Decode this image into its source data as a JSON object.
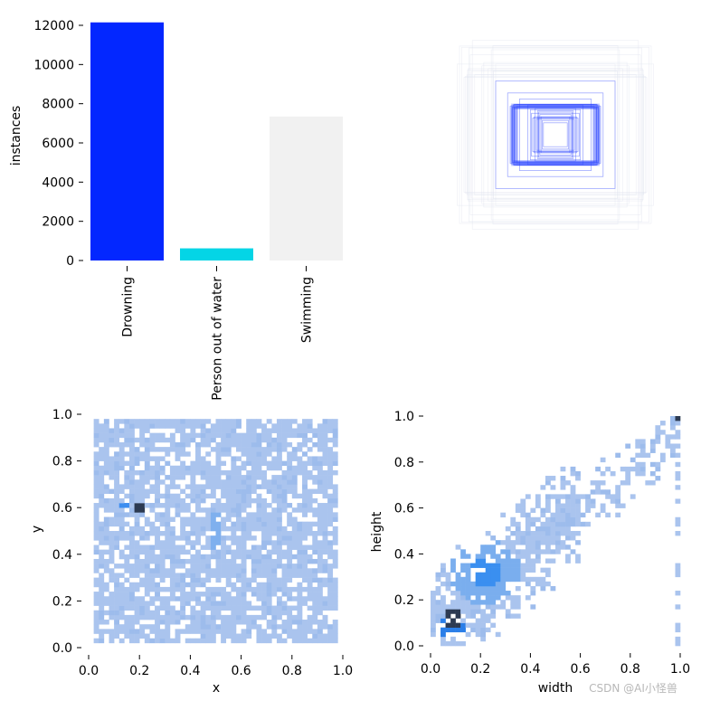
{
  "chart_data": [
    {
      "type": "bar",
      "categories": [
        "Drowning",
        "Person out of water",
        "Swimming"
      ],
      "values": [
        12150,
        620,
        7350
      ],
      "colors": [
        "#0327ff",
        "#04d5e6",
        "#f1f1f1"
      ],
      "xlabel": "",
      "ylabel": "instances",
      "ylim": [
        0,
        12000
      ],
      "yticks": [
        "0",
        "2000",
        "4000",
        "6000",
        "8000",
        "10000",
        "12000"
      ],
      "grid": false
    },
    {
      "type": "boxes",
      "description_color": "#3a52ff",
      "boxes_wh": [
        [
          0.28,
          0.28
        ],
        [
          0.32,
          0.26
        ],
        [
          0.26,
          0.34
        ],
        [
          0.36,
          0.3
        ],
        [
          0.3,
          0.4
        ],
        [
          0.22,
          0.24
        ],
        [
          0.4,
          0.36
        ],
        [
          0.34,
          0.44
        ],
        [
          0.24,
          0.3
        ],
        [
          0.38,
          0.28
        ],
        [
          0.28,
          0.38
        ],
        [
          0.42,
          0.42
        ],
        [
          0.2,
          0.2
        ],
        [
          0.46,
          0.5
        ],
        [
          0.3,
          0.3
        ],
        [
          0.6,
          0.6
        ],
        [
          0.8,
          0.7
        ],
        [
          1.0,
          0.9
        ]
      ]
    },
    {
      "type": "heatmap",
      "xlabel": "x",
      "ylabel": "y",
      "xlim": [
        0.0,
        1.0
      ],
      "ylim": [
        0.0,
        1.0
      ],
      "xticks": [
        "0.0",
        "0.2",
        "0.4",
        "0.6",
        "0.8",
        "1.0"
      ],
      "yticks": [
        "0.0",
        "0.2",
        "0.4",
        "0.6",
        "0.8",
        "1.0"
      ],
      "base_color": "#aac4ee",
      "hotspots": [
        {
          "x": 0.2,
          "y": 0.605,
          "level": "high"
        },
        {
          "x": 0.49,
          "y": 0.49,
          "level": "high"
        },
        {
          "x": 0.15,
          "y": 0.61,
          "level": "medium"
        }
      ]
    },
    {
      "type": "heatmap",
      "xlabel": "width",
      "ylabel": "height",
      "xlim": [
        0.0,
        1.0
      ],
      "ylim": [
        0.0,
        1.0
      ],
      "xticks": [
        "0.0",
        "0.2",
        "0.4",
        "0.6",
        "0.8",
        "1.0"
      ],
      "yticks": [
        "0.0",
        "0.2",
        "0.4",
        "0.6",
        "0.8",
        "1.0"
      ],
      "base_color": "#aac4ee",
      "hotspots": [
        {
          "x": 0.09,
          "y": 0.11,
          "level": "high"
        },
        {
          "x": 0.22,
          "y": 0.32,
          "level": "medium"
        },
        {
          "x": 1.0,
          "y": 1.0,
          "level": "high"
        }
      ]
    }
  ],
  "watermark": "CSDN @AI小怪兽"
}
